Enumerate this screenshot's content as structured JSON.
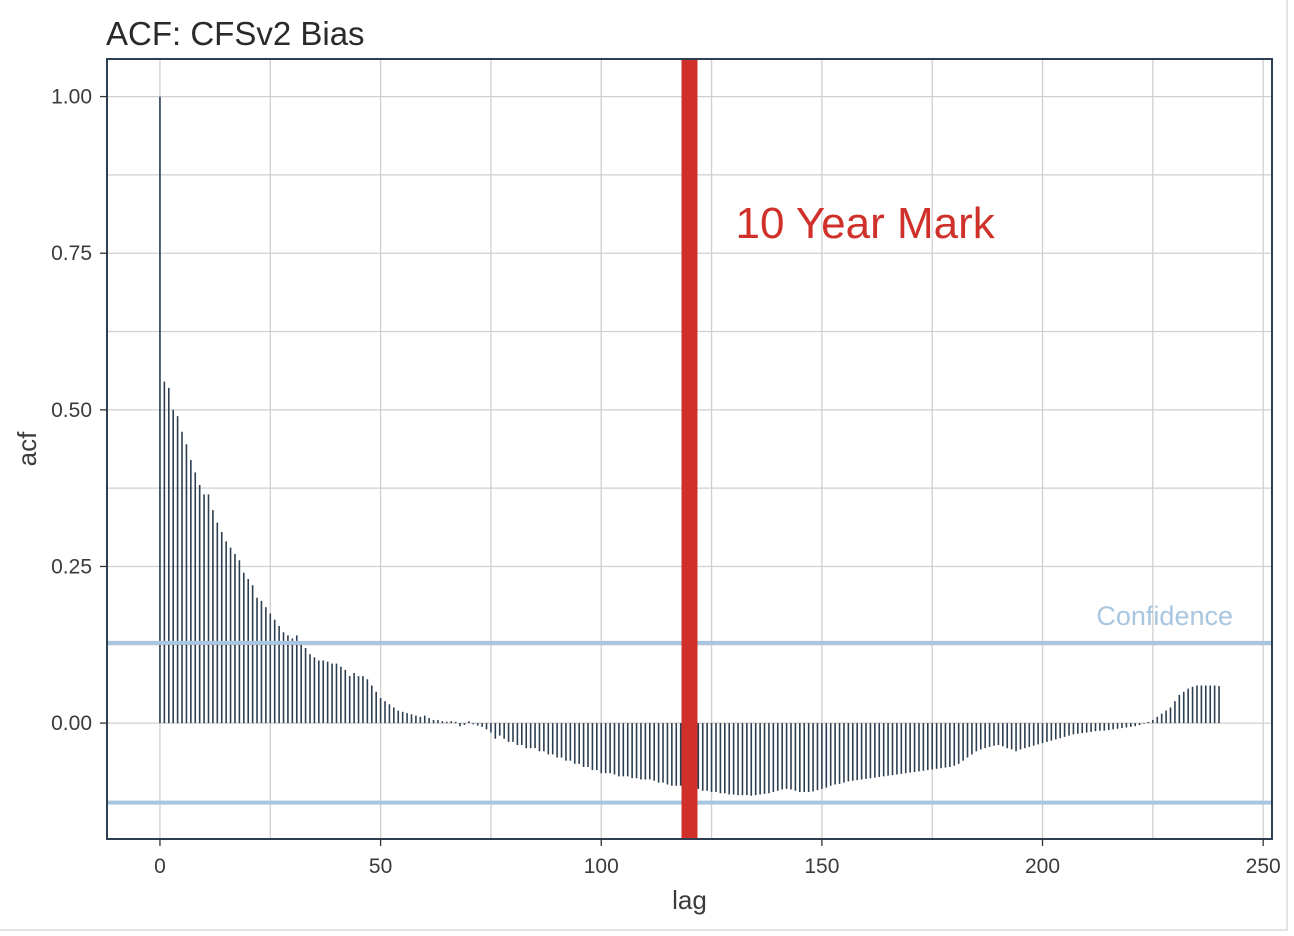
{
  "chart_data": {
    "type": "bar",
    "title": "ACF: CFSv2 Bias",
    "xlabel": "lag",
    "ylabel": "acf",
    "xlim": [
      -12,
      252
    ],
    "ylim": [
      -0.185,
      1.06
    ],
    "x_ticks": [
      0,
      50,
      100,
      150,
      200,
      250
    ],
    "x_tick_labels": [
      "0",
      "50",
      "100",
      "150",
      "200",
      "250"
    ],
    "y_ticks": [
      0,
      0.25,
      0.5,
      0.75,
      1
    ],
    "y_tick_labels": [
      "0.00",
      "0.25",
      "0.50",
      "0.75",
      "1.00"
    ],
    "grid": true,
    "lags": [
      0,
      1,
      2,
      3,
      4,
      5,
      6,
      7,
      8,
      9,
      10,
      11,
      12,
      13,
      14,
      15,
      16,
      17,
      18,
      19,
      20,
      21,
      22,
      23,
      24,
      25,
      26,
      27,
      28,
      29,
      30,
      31,
      32,
      33,
      34,
      35,
      36,
      37,
      38,
      39,
      40,
      41,
      42,
      43,
      44,
      45,
      46,
      47,
      48,
      49,
      50,
      51,
      52,
      53,
      54,
      55,
      56,
      57,
      58,
      59,
      60,
      61,
      62,
      63,
      64,
      65,
      66,
      67,
      68,
      69,
      70,
      71,
      72,
      73,
      74,
      75,
      76,
      77,
      78,
      79,
      80,
      81,
      82,
      83,
      84,
      85,
      86,
      87,
      88,
      89,
      90,
      91,
      92,
      93,
      94,
      95,
      96,
      97,
      98,
      99,
      100,
      101,
      102,
      103,
      104,
      105,
      106,
      107,
      108,
      109,
      110,
      111,
      112,
      113,
      114,
      115,
      116,
      117,
      118,
      119,
      120,
      121,
      122,
      123,
      124,
      125,
      126,
      127,
      128,
      129,
      130,
      131,
      132,
      133,
      134,
      135,
      136,
      137,
      138,
      139,
      140,
      141,
      142,
      143,
      144,
      145,
      146,
      147,
      148,
      149,
      150,
      151,
      152,
      153,
      154,
      155,
      156,
      157,
      158,
      159,
      160,
      161,
      162,
      163,
      164,
      165,
      166,
      167,
      168,
      169,
      170,
      171,
      172,
      173,
      174,
      175,
      176,
      177,
      178,
      179,
      180,
      181,
      182,
      183,
      184,
      185,
      186,
      187,
      188,
      189,
      190,
      191,
      192,
      193,
      194,
      195,
      196,
      197,
      198,
      199,
      200,
      201,
      202,
      203,
      204,
      205,
      206,
      207,
      208,
      209,
      210,
      211,
      212,
      213,
      214,
      215,
      216,
      217,
      218,
      219,
      220,
      221,
      222,
      223,
      224,
      225,
      226,
      227,
      228,
      229,
      230,
      231,
      232,
      233,
      234,
      235,
      236,
      237,
      238,
      239,
      240
    ],
    "values": [
      1.0,
      0.545,
      0.535,
      0.5,
      0.49,
      0.465,
      0.445,
      0.42,
      0.4,
      0.38,
      0.365,
      0.365,
      0.34,
      0.32,
      0.305,
      0.29,
      0.28,
      0.27,
      0.26,
      0.24,
      0.23,
      0.22,
      0.2,
      0.195,
      0.185,
      0.175,
      0.165,
      0.155,
      0.145,
      0.14,
      0.135,
      0.14,
      0.13,
      0.12,
      0.11,
      0.105,
      0.1,
      0.1,
      0.098,
      0.095,
      0.095,
      0.09,
      0.085,
      0.075,
      0.08,
      0.075,
      0.075,
      0.07,
      0.06,
      0.05,
      0.04,
      0.035,
      0.03,
      0.025,
      0.02,
      0.018,
      0.016,
      0.014,
      0.012,
      0.01,
      0.012,
      0.008,
      0.005,
      0.005,
      0.003,
      0.002,
      0.003,
      0.002,
      -0.005,
      -0.003,
      0.003,
      -0.002,
      -0.004,
      -0.006,
      -0.01,
      -0.015,
      -0.025,
      -0.02,
      -0.025,
      -0.03,
      -0.03,
      -0.035,
      -0.035,
      -0.04,
      -0.04,
      -0.04,
      -0.045,
      -0.045,
      -0.05,
      -0.05,
      -0.055,
      -0.055,
      -0.06,
      -0.06,
      -0.065,
      -0.065,
      -0.07,
      -0.07,
      -0.075,
      -0.075,
      -0.08,
      -0.08,
      -0.08,
      -0.082,
      -0.085,
      -0.085,
      -0.085,
      -0.088,
      -0.088,
      -0.09,
      -0.09,
      -0.09,
      -0.092,
      -0.095,
      -0.095,
      -0.098,
      -0.1,
      -0.1,
      -0.1,
      -0.102,
      -0.103,
      -0.105,
      -0.105,
      -0.108,
      -0.108,
      -0.11,
      -0.11,
      -0.112,
      -0.112,
      -0.114,
      -0.114,
      -0.115,
      -0.115,
      -0.115,
      -0.116,
      -0.115,
      -0.114,
      -0.113,
      -0.112,
      -0.11,
      -0.108,
      -0.106,
      -0.105,
      -0.106,
      -0.108,
      -0.11,
      -0.11,
      -0.11,
      -0.109,
      -0.107,
      -0.105,
      -0.103,
      -0.1,
      -0.098,
      -0.097,
      -0.095,
      -0.093,
      -0.092,
      -0.091,
      -0.09,
      -0.089,
      -0.088,
      -0.087,
      -0.086,
      -0.085,
      -0.084,
      -0.083,
      -0.082,
      -0.081,
      -0.08,
      -0.079,
      -0.078,
      -0.077,
      -0.076,
      -0.075,
      -0.074,
      -0.073,
      -0.072,
      -0.071,
      -0.07,
      -0.068,
      -0.065,
      -0.06,
      -0.055,
      -0.05,
      -0.045,
      -0.042,
      -0.04,
      -0.038,
      -0.036,
      -0.035,
      -0.037,
      -0.04,
      -0.042,
      -0.045,
      -0.042,
      -0.04,
      -0.038,
      -0.036,
      -0.034,
      -0.032,
      -0.03,
      -0.028,
      -0.026,
      -0.024,
      -0.022,
      -0.02,
      -0.018,
      -0.017,
      -0.016,
      -0.015,
      -0.014,
      -0.013,
      -0.012,
      -0.012,
      -0.011,
      -0.01,
      -0.009,
      -0.008,
      -0.007,
      -0.006,
      -0.005,
      -0.003,
      -0.001,
      0.002,
      0.005,
      0.01,
      0.015,
      0.02,
      0.025,
      0.035,
      0.045,
      0.05,
      0.055,
      0.058,
      0.06,
      0.06,
      0.06,
      0.06,
      0.06,
      0.059,
      0.058,
      0.057
    ],
    "confidence": [
      0.128,
      -0.127
    ],
    "confidence_label": "Confidence",
    "annotation": {
      "lag": 120,
      "text": "10 Year Mark"
    },
    "colors": {
      "bars": "#2c3e50",
      "annotation": "#d0302a",
      "confidence": "#a9c6e0",
      "grid": "#cfcfcf",
      "panel_border": "#2c3e50"
    }
  }
}
